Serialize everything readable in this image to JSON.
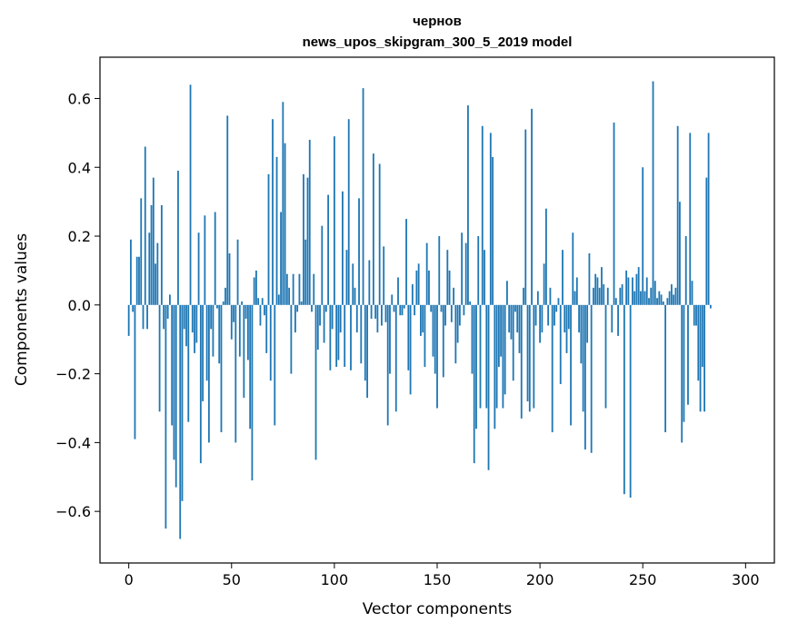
{
  "chart_data": {
    "type": "bar",
    "title_line1": "чернов",
    "title_line2": "news_upos_skipgram_300_5_2019 model",
    "xlabel": "Vector components",
    "ylabel": "Components values",
    "xlim": [
      -14,
      314
    ],
    "ylim": [
      -0.75,
      0.72
    ],
    "xticks": [
      0,
      50,
      100,
      150,
      200,
      250,
      300
    ],
    "xtick_labels": [
      "0",
      "50",
      "100",
      "150",
      "200",
      "250",
      "300"
    ],
    "yticks": [
      -0.6,
      -0.4,
      -0.2,
      0.0,
      0.2,
      0.4,
      0.6
    ],
    "ytick_labels": [
      "−0.6",
      "−0.4",
      "−0.2",
      "0.0",
      "0.2",
      "0.4",
      "0.6"
    ],
    "grid": false,
    "color": "#1f77b4",
    "values": [
      -0.09,
      0.19,
      -0.02,
      -0.39,
      0.14,
      0.14,
      0.31,
      -0.07,
      0.46,
      -0.07,
      0.21,
      0.29,
      0.37,
      0.12,
      0.18,
      -0.31,
      0.29,
      -0.07,
      -0.65,
      -0.04,
      0.03,
      -0.35,
      -0.45,
      -0.53,
      0.39,
      -0.68,
      -0.57,
      -0.07,
      -0.12,
      -0.34,
      0.64,
      -0.08,
      -0.14,
      -0.11,
      0.21,
      -0.46,
      -0.28,
      0.26,
      -0.22,
      -0.4,
      -0.07,
      -0.15,
      0.27,
      -0.01,
      -0.17,
      -0.37,
      0.01,
      0.05,
      0.55,
      0.15,
      -0.1,
      -0.05,
      -0.4,
      0.19,
      -0.15,
      0.01,
      -0.27,
      -0.04,
      -0.16,
      -0.36,
      -0.51,
      0.08,
      0.1,
      0.02,
      -0.06,
      0.02,
      -0.03,
      -0.14,
      0.38,
      -0.22,
      0.54,
      -0.35,
      0.43,
      0.03,
      0.27,
      0.59,
      0.47,
      0.09,
      0.05,
      -0.2,
      0.09,
      -0.08,
      -0.02,
      0.09,
      0.01,
      0.38,
      0.19,
      0.37,
      0.48,
      -0.02,
      0.09,
      -0.45,
      -0.13,
      -0.06,
      0.23,
      -0.11,
      -0.02,
      0.32,
      -0.19,
      -0.07,
      0.49,
      -0.18,
      -0.16,
      -0.08,
      0.33,
      -0.18,
      0.16,
      0.54,
      -0.19,
      0.12,
      0.05,
      -0.08,
      0.31,
      -0.17,
      0.63,
      -0.22,
      -0.27,
      0.13,
      -0.04,
      0.44,
      -0.04,
      -0.08,
      0.41,
      -0.06,
      0.17,
      -0.05,
      -0.35,
      -0.2,
      0.03,
      -0.02,
      -0.31,
      0.08,
      -0.03,
      -0.03,
      -0.01,
      0.25,
      -0.19,
      -0.26,
      0.06,
      -0.03,
      0.1,
      0.12,
      -0.09,
      -0.08,
      -0.18,
      0.18,
      0.1,
      -0.02,
      -0.15,
      -0.2,
      -0.3,
      0.2,
      -0.02,
      -0.21,
      -0.06,
      0.16,
      0.1,
      -0.05,
      0.05,
      -0.17,
      -0.11,
      -0.06,
      0.21,
      -0.03,
      0.18,
      0.58,
      0.01,
      -0.2,
      -0.46,
      -0.36,
      0.2,
      -0.3,
      0.52,
      0.16,
      -0.3,
      -0.48,
      0.5,
      0.43,
      -0.36,
      -0.3,
      -0.18,
      -0.15,
      -0.3,
      -0.26,
      0.07,
      -0.08,
      -0.1,
      -0.22,
      -0.02,
      -0.08,
      -0.14,
      -0.33,
      0.05,
      0.51,
      -0.28,
      -0.31,
      0.57,
      -0.3,
      -0.06,
      0.04,
      -0.11,
      -0.08,
      0.12,
      0.28,
      -0.06,
      0.05,
      -0.37,
      -0.06,
      -0.02,
      0.02,
      -0.23,
      0.16,
      -0.08,
      -0.14,
      -0.07,
      -0.35,
      0.21,
      0.04,
      0.08,
      -0.08,
      -0.17,
      -0.31,
      -0.42,
      -0.11,
      0.15,
      -0.43,
      0.05,
      0.09,
      0.08,
      0.05,
      0.11,
      0.06,
      -0.3,
      0.05,
      0.0,
      -0.08,
      0.53,
      0.02,
      -0.09,
      0.05,
      0.06,
      -0.55,
      0.1,
      0.08,
      -0.56,
      0.08,
      0.04,
      0.09,
      0.11,
      0.04,
      0.4,
      0.04,
      0.08,
      0.02,
      0.05,
      0.65,
      0.07,
      0.02,
      0.04,
      0.03,
      0.01,
      -0.37,
      0.02,
      0.04,
      0.06,
      0.03,
      0.05,
      0.52,
      0.3,
      -0.4,
      -0.34,
      0.2,
      -0.29,
      0.5,
      0.07,
      -0.06,
      -0.06,
      -0.22,
      -0.31,
      -0.18,
      -0.31,
      0.37,
      0.5,
      -0.01
    ]
  }
}
